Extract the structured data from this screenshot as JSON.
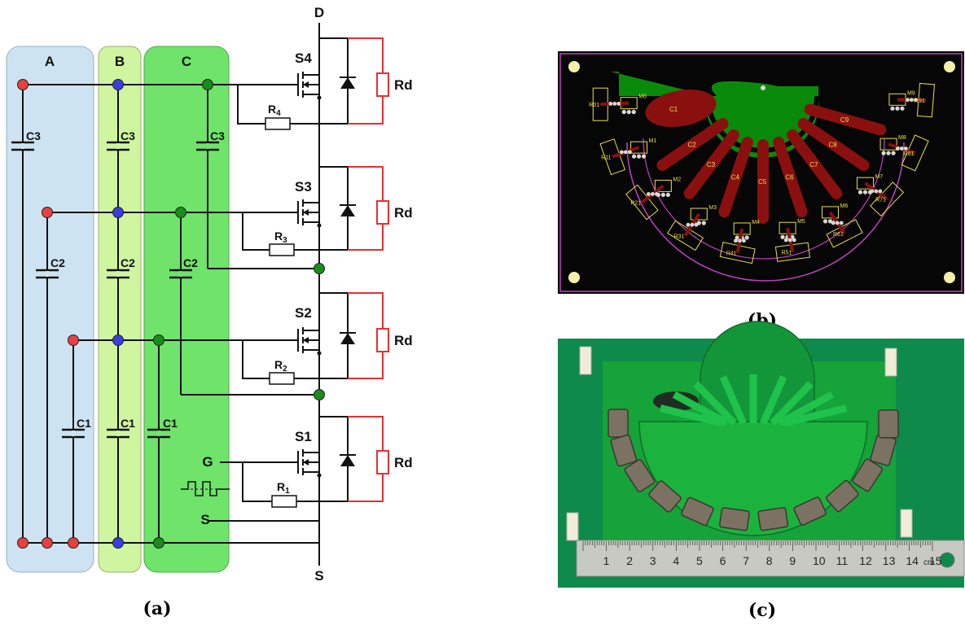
{
  "panel_a": {
    "caption": "(a)",
    "columns": [
      "A",
      "B",
      "C"
    ],
    "terminals": {
      "drain": "D",
      "source": "S",
      "gate": "G",
      "source_ref": "S"
    },
    "switches": [
      "S4",
      "S3",
      "S2",
      "S1"
    ],
    "gate_resistors": [
      {
        "main": "R",
        "sub": "4"
      },
      {
        "main": "R",
        "sub": "3"
      },
      {
        "main": "R",
        "sub": "2"
      },
      {
        "main": "R",
        "sub": "1"
      }
    ],
    "damping_resistor": "Rd",
    "capacitors": [
      "C3",
      "C2",
      "C1"
    ],
    "colors": {
      "A": "#cde3f2",
      "B": "#cff5a0",
      "C": "#6fe36a",
      "node_a": "#e84040",
      "node_b": "#3a3ee0",
      "node_c": "#1a8c1a",
      "damping": "#e53030"
    }
  },
  "panel_b": {
    "caption": "(b)",
    "capacitors": [
      "C1",
      "C2",
      "C3",
      "C4",
      "C5",
      "C6",
      "C7",
      "C8",
      "C9"
    ],
    "mosfets": [
      "M0",
      "M1",
      "M2",
      "M3",
      "M4",
      "M5",
      "M6",
      "M7",
      "M8",
      "M9"
    ],
    "resistors": [
      "R01",
      "R11",
      "R21",
      "R31",
      "R41",
      "R51",
      "R61",
      "R71",
      "R81",
      "R91"
    ]
  },
  "panel_c": {
    "caption": "(c)",
    "ruler_numbers": [
      "1",
      "2",
      "3",
      "4",
      "5",
      "6",
      "7",
      "8",
      "9",
      "10",
      "11",
      "12",
      "13",
      "14",
      "15"
    ],
    "ruler_unit": "cm"
  }
}
